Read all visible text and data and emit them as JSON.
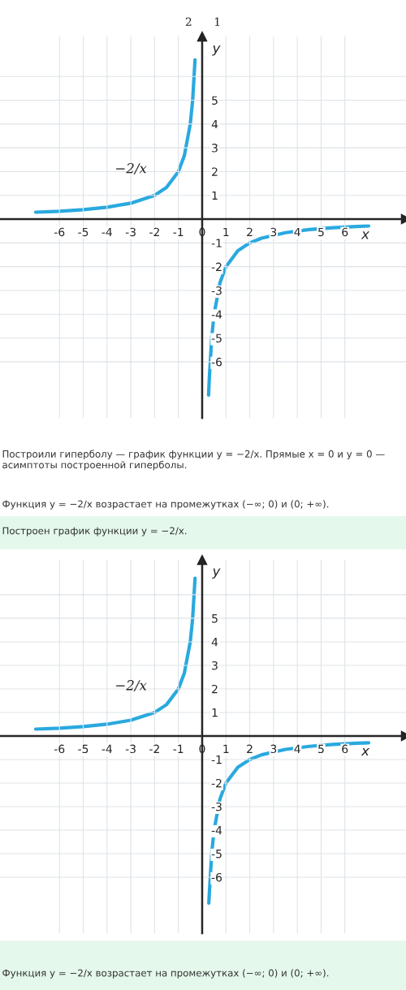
{
  "chart_data": [
    {
      "type": "line",
      "title": "2      1",
      "xlabel": "x",
      "ylabel": "y",
      "series": [
        {
          "color": "#29a9df",
          "x": [
            -7,
            -6,
            -5,
            -4,
            -3,
            -2,
            -1.5,
            -1,
            -0.75,
            -0.5,
            -0.4,
            -0.3
          ],
          "values": [
            0.29,
            0.33,
            0.4,
            0.5,
            0.67,
            1,
            1.33,
            2,
            2.67,
            4,
            5,
            6.7
          ]
        },
        {
          "color": "#29a9df",
          "x": [
            0.27,
            0.3,
            0.4,
            0.5,
            0.75,
            1,
            1.5,
            2,
            2.5,
            3.5,
            4.5,
            5.5,
            6.5,
            7
          ],
          "values": [
            -7.4,
            -6.7,
            -5,
            -4,
            -2.67,
            -2,
            -1.33,
            -1,
            -0.8,
            -0.57,
            -0.44,
            -0.36,
            -0.31,
            -0.29
          ]
        }
      ],
      "xlim": [
        -8.5,
        8.57
      ],
      "ylim": [
        -8.36,
        7.68
      ],
      "xticks": [
        -6,
        -5,
        -4,
        -3,
        -2,
        -1,
        0,
        1,
        2,
        3,
        4,
        5,
        6
      ],
      "yticks": [
        -6,
        -5,
        -4,
        -3,
        -2,
        -1,
        1,
        2,
        3,
        4,
        5,
        {
          "value": 6,
          "label": null
        }
      ],
      "grid": true,
      "marker": "none",
      "line_style": "solid",
      "annotations": [
        {
          "text": "−2/x",
          "x": -3,
          "y": 0.67
        },
        "Построили гиперболу — график функции y = −2/x. Прямые x = 0 и y = 0 — асимптоты построенной гиперболы.",
        "Функция y = −2/x возрастает на промежутках (−∞; 0) и (0; +∞).",
        "Построен график функции y = −2/x."
      ]
    },
    {
      "type": "line",
      "xlabel": "x",
      "ylabel": "y",
      "series": [
        {
          "color": "#29a9df",
          "x": [
            -7,
            -6,
            -5,
            -4,
            -3,
            -2,
            -1.5,
            -1,
            -0.75,
            -0.5,
            -0.4,
            -0.3
          ],
          "values": [
            0.29,
            0.33,
            0.4,
            0.5,
            0.67,
            1,
            1.33,
            2,
            2.67,
            4,
            5,
            6.7
          ]
        },
        {
          "color": "#29a9df",
          "x": [
            0.28,
            0.3,
            0.4,
            0.5,
            0.75,
            1,
            1.5,
            2,
            2.5,
            3.5,
            4.5,
            5.5,
            6.5,
            7
          ],
          "values": [
            -7.1,
            -6.7,
            -5,
            -4,
            -2.67,
            -2,
            -1.33,
            -1,
            -0.8,
            -0.57,
            -0.44,
            -0.36,
            -0.31,
            -0.29
          ]
        }
      ],
      "xlim": [
        -8.5,
        8.57
      ],
      "ylim": [
        -8.38,
        7.48
      ],
      "xticks": [
        -6,
        -5,
        -4,
        -3,
        -2,
        -1,
        0,
        1,
        2,
        3,
        4,
        5,
        6
      ],
      "yticks": [
        -6,
        -5,
        -4,
        -3,
        -2,
        -1,
        1,
        2,
        3,
        4,
        5,
        {
          "value": 6,
          "label": null
        }
      ],
      "grid": true,
      "marker": "none",
      "line_style": "solid",
      "annotations": [
        {
          "text": "−2/x",
          "x": -3,
          "y": 0.67
        },
        "Функция y = −2/x возрастает на промежутках (−∞; 0) и (0; +∞)."
      ]
    }
  ]
}
